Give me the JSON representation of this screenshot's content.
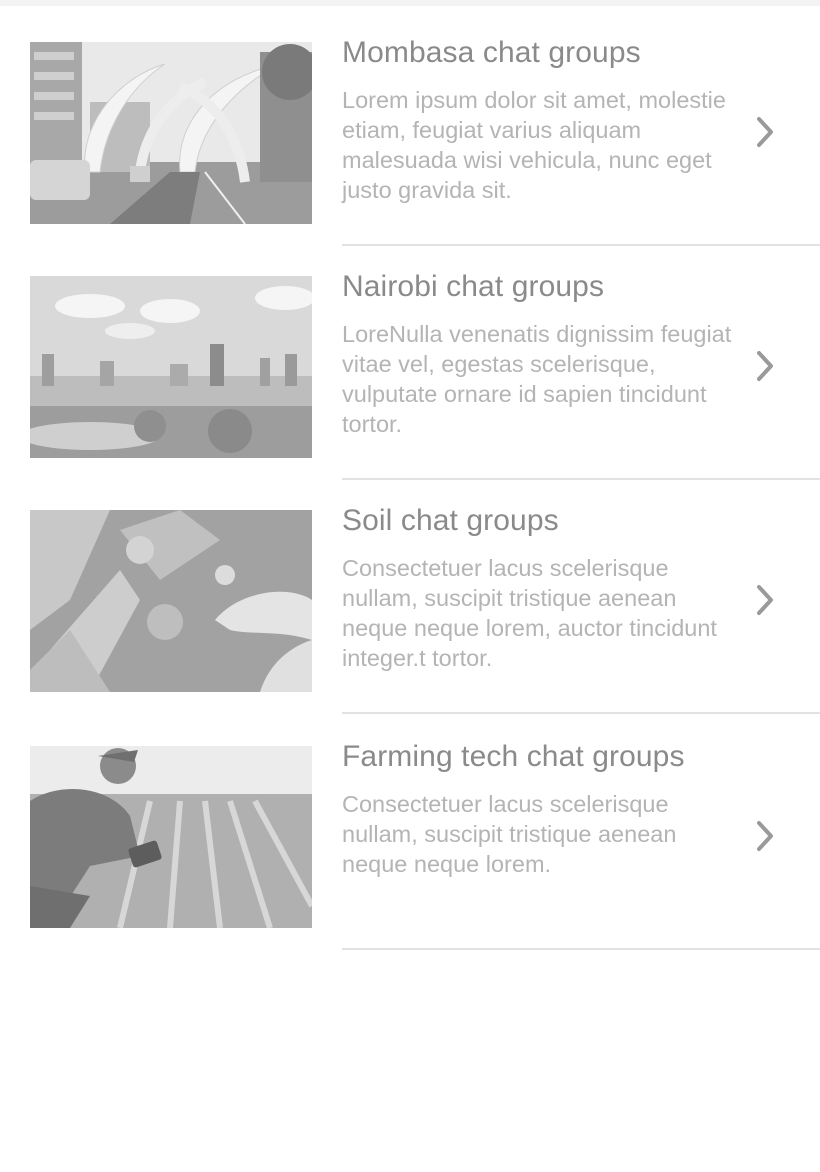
{
  "groups": [
    {
      "title": "Mombasa chat groups",
      "description": "Lorem ipsum dolor sit amet, molestie etiam, feugiat varius aliquam malesuada wisi vehicula, nunc eget justo gravida sit.",
      "image": "mombasa-tusks-photo"
    },
    {
      "title": "Nairobi chat groups",
      "description": "LoreNulla venenatis dignissim feugiat vitae vel, egestas scelerisque, vulputate ornare id sapien tincidunt tortor.",
      "image": "nairobi-skyline-photo"
    },
    {
      "title": "Soil chat groups",
      "description": "Consectetuer lacus scelerisque nullam, suscipit tristique aenean neque neque lorem, auctor tincidunt integer.t tortor.",
      "image": "soil-hands-photo"
    },
    {
      "title": "Farming tech chat groups",
      "description": "Consectetuer lacus scelerisque nullam, suscipit tristique aenean neque neque lorem.",
      "image": "farmer-tablet-photo"
    }
  ],
  "icons": {
    "chevron": "chevron-right-icon"
  },
  "colors": {
    "title": "#8a8a8a",
    "description": "#b4b4b4",
    "divider": "#e2e2e2",
    "chevron": "#9a9a9a"
  }
}
